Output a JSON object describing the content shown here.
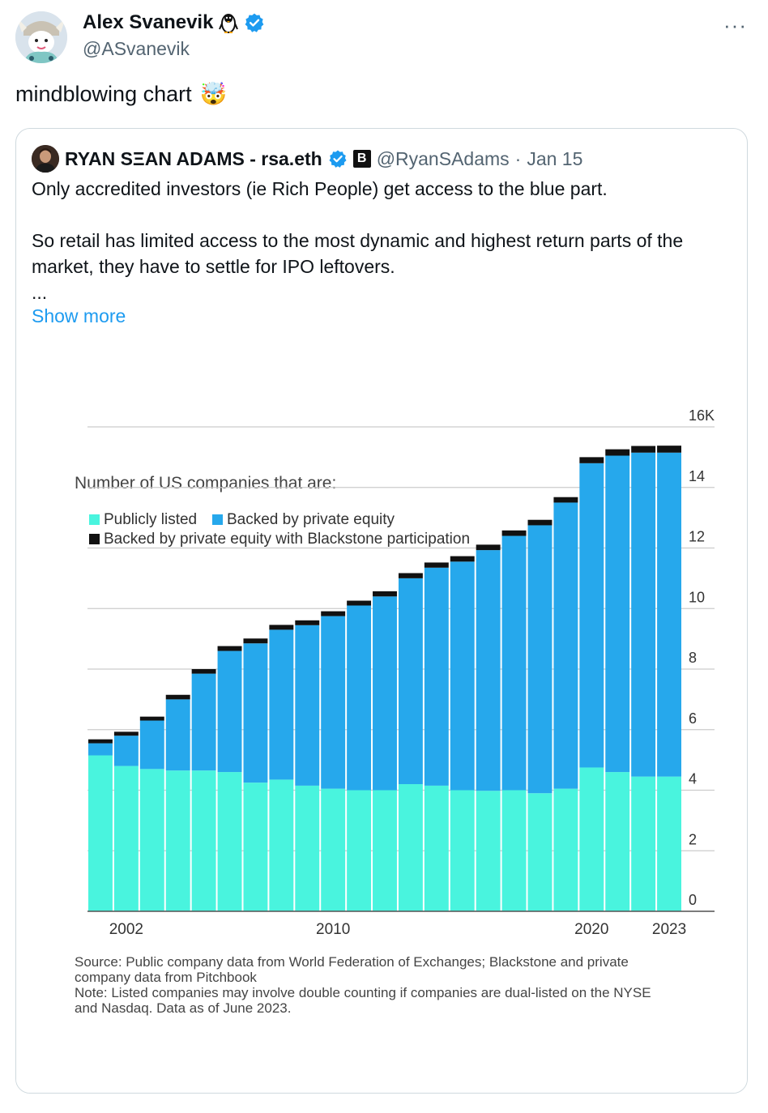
{
  "tweet": {
    "author_name": "Alex Svanevik",
    "author_handle": "@ASvanevik",
    "more_label": "···",
    "text": "mindblowing chart",
    "emoji": "🤯"
  },
  "quote": {
    "author_name": "RYAN SΞAN ADAMS - rsa.eth",
    "badge_label": "B",
    "author_handle": "@RyanSAdams",
    "separator": "·",
    "date": "Jan 15",
    "line1": "Only accredited investors (ie Rich People) get access to the blue part.",
    "line2": "So retail has limited access to the most dynamic and highest return parts of the market, they have to settle for IPO leftovers.",
    "line3": "...",
    "show_more": "Show more"
  },
  "colors": {
    "public": "#49f4de",
    "private": "#26a8ec",
    "blackstone": "#111111",
    "verified": "#1d9bf0"
  },
  "chart_data": {
    "type": "bar",
    "stacked": true,
    "title": "Number of US companies that are:",
    "legend": [
      "Publicly listed",
      "Backed by private equity",
      "Backed by private equity with Blackstone participation"
    ],
    "x": [
      2001,
      2002,
      2003,
      2004,
      2005,
      2006,
      2007,
      2008,
      2009,
      2010,
      2011,
      2012,
      2013,
      2014,
      2015,
      2016,
      2017,
      2018,
      2019,
      2020,
      2021,
      2022,
      2023
    ],
    "x_tick_labels": [
      "2002",
      "2010",
      "2020",
      "2023"
    ],
    "y_tick_labels": [
      "0",
      "2",
      "4",
      "6",
      "8",
      "10",
      "12",
      "14",
      "16K"
    ],
    "ylim": [
      0,
      16
    ],
    "series": [
      {
        "name": "Publicly listed",
        "values": [
          5.15,
          4.8,
          4.7,
          4.65,
          4.65,
          4.6,
          4.25,
          4.35,
          4.15,
          4.05,
          4.0,
          4.0,
          4.2,
          4.15,
          4.0,
          3.98,
          4.0,
          3.9,
          4.05,
          4.75,
          4.6,
          4.45,
          4.45
        ]
      },
      {
        "name": "Backed by private equity",
        "values": [
          0.4,
          1.0,
          1.6,
          2.35,
          3.2,
          4.0,
          4.6,
          4.95,
          5.3,
          5.7,
          6.1,
          6.4,
          6.8,
          7.2,
          7.55,
          7.95,
          8.4,
          8.85,
          9.45,
          10.05,
          10.45,
          10.7,
          10.7
        ]
      },
      {
        "name": "Backed by private equity with Blackstone participation",
        "values": [
          0.05,
          0.05,
          0.05,
          0.07,
          0.07,
          0.08,
          0.08,
          0.08,
          0.08,
          0.08,
          0.08,
          0.09,
          0.09,
          0.09,
          0.1,
          0.1,
          0.1,
          0.1,
          0.1,
          0.12,
          0.13,
          0.14,
          0.15
        ]
      }
    ],
    "source": "Source: Public company data from World Federation of Exchanges; Blackstone and private company data from Pitchbook",
    "note": "Note: Listed companies may involve double counting if companies are dual-listed on the NYSE and Nasdaq. Data as of June 2023."
  }
}
